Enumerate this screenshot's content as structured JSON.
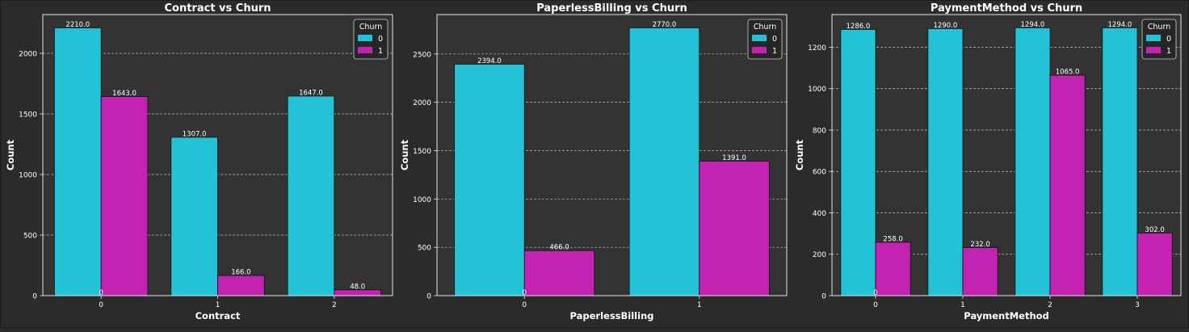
{
  "colors": {
    "background": "#2b2b2b",
    "axes_face": "#333333",
    "spine": "#e6e6e6",
    "grid": "#bfbfbf",
    "text": "#ffffff",
    "series_0": "#22c3d6",
    "series_1": "#c422b3",
    "legend_face": "#262626"
  },
  "chart_data": [
    {
      "type": "bar",
      "title": "Contract vs Churn",
      "xlabel": "Contract",
      "ylabel": "Count",
      "categories": [
        "0",
        "1",
        "2"
      ],
      "ylim": [
        0,
        2320
      ],
      "yticks": [
        0,
        500,
        1000,
        1500,
        2000
      ],
      "grid": true,
      "legend": {
        "title": "Churn",
        "position": "top-right",
        "entries": [
          "0",
          "1"
        ]
      },
      "series": [
        {
          "name": "0",
          "values": [
            2210.0,
            1307.0,
            1647.0
          ],
          "labels": [
            "2210.0",
            "1307.0",
            "1647.0"
          ]
        },
        {
          "name": "1",
          "values": [
            1643.0,
            166.0,
            48.0
          ],
          "labels": [
            "1643.0",
            "166.0",
            "48.0"
          ]
        }
      ],
      "annotations": [
        "0"
      ]
    },
    {
      "type": "bar",
      "title": "PaperlessBilling vs Churn",
      "xlabel": "PaperlessBilling",
      "ylabel": "Count",
      "categories": [
        "0",
        "1"
      ],
      "ylim": [
        0,
        2908
      ],
      "yticks": [
        0,
        500,
        1000,
        1500,
        2000,
        2500
      ],
      "grid": true,
      "legend": {
        "title": "Churn",
        "position": "top-right",
        "entries": [
          "0",
          "1"
        ]
      },
      "series": [
        {
          "name": "0",
          "values": [
            2394.0,
            2770.0
          ],
          "labels": [
            "2394.0",
            "2770.0"
          ]
        },
        {
          "name": "1",
          "values": [
            466.0,
            1391.0
          ],
          "labels": [
            "466.0",
            "1391.0"
          ]
        }
      ],
      "annotations": [
        "0"
      ]
    },
    {
      "type": "bar",
      "title": "PaymentMethod vs Churn",
      "xlabel": "PaymentMethod",
      "ylabel": "Count",
      "categories": [
        "0",
        "1",
        "2",
        "3"
      ],
      "ylim": [
        0,
        1358
      ],
      "yticks": [
        0,
        200,
        400,
        600,
        800,
        1000,
        1200
      ],
      "grid": true,
      "legend": {
        "title": "Churn",
        "position": "top-right",
        "entries": [
          "0",
          "1"
        ]
      },
      "series": [
        {
          "name": "0",
          "values": [
            1286.0,
            1290.0,
            1294.0,
            1294.0
          ],
          "labels": [
            "1286.0",
            "1290.0",
            "1294.0",
            "1294.0"
          ]
        },
        {
          "name": "1",
          "values": [
            258.0,
            232.0,
            1065.0,
            302.0
          ],
          "labels": [
            "258.0",
            "232.0",
            "1065.0",
            "302.0"
          ]
        }
      ],
      "annotations": [
        "0"
      ]
    }
  ]
}
